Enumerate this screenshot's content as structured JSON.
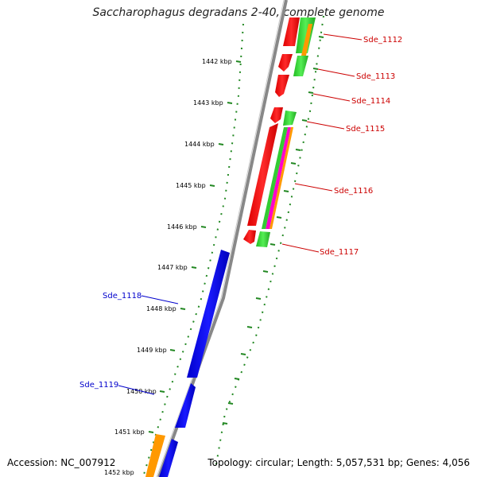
{
  "title": "Saccharophagus degradans 2-40, complete genome",
  "footer": {
    "accession": "Accession: NC_007912",
    "topology": "Topology: circular; Length: 5,057,531 bp; Genes: 4,056"
  },
  "kbp_labels": [
    "1442 kbp",
    "1443 kbp",
    "1444 kbp",
    "1445 kbp",
    "1446 kbp",
    "1447 kbp",
    "1448 kbp",
    "1449 kbp",
    "1450 kbp",
    "1451 kbp",
    "1452 kbp"
  ],
  "genes_forward": [
    {
      "label": "Sde_1112",
      "color": "#cc0000"
    },
    {
      "label": "Sde_1113",
      "color": "#cc0000"
    },
    {
      "label": "Sde_1114",
      "color": "#cc0000"
    },
    {
      "label": "Sde_1115",
      "color": "#cc0000"
    },
    {
      "label": "Sde_1116",
      "color": "#cc0000"
    },
    {
      "label": "Sde_1117",
      "color": "#cc0000"
    }
  ],
  "genes_reverse": [
    {
      "label": "Sde_1118",
      "color": "#0000cc"
    },
    {
      "label": "Sde_1119",
      "color": "#0000cc"
    }
  ],
  "colors": {
    "forward_cds": "#ff0000",
    "reverse_cds": "#0000ff",
    "feature_green": "#33cc33",
    "feature_orange": "#ff9900",
    "feature_magenta": "#ff00cc",
    "backbone": "#888888",
    "tick": "#228822",
    "label_red": "#cc0000",
    "label_blue": "#0000cc"
  }
}
